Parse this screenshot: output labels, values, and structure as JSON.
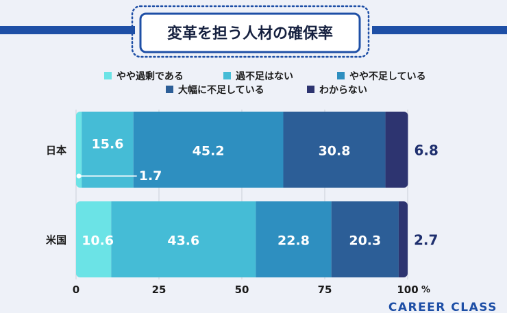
{
  "chart_data": {
    "type": "bar",
    "orientation": "horizontal",
    "stacked": true,
    "title": "変革を担う人材の確保率",
    "categories": [
      "日本",
      "米国"
    ],
    "series": [
      {
        "name": "やや過剰である",
        "color": "#6be3e6",
        "values": [
          1.7,
          10.6
        ]
      },
      {
        "name": "過不足はない",
        "color": "#45bcd6",
        "values": [
          15.6,
          43.6
        ]
      },
      {
        "name": "やや不足している",
        "color": "#2e8fc0",
        "values": [
          45.2,
          22.8
        ]
      },
      {
        "name": "大幅に不足している",
        "color": "#2c5e97",
        "values": [
          30.8,
          20.3
        ]
      },
      {
        "name": "わからない",
        "color": "#2d3470",
        "values": [
          6.8,
          2.7
        ]
      }
    ],
    "xlim": [
      0,
      100
    ],
    "xticks": [
      "0",
      "25",
      "50",
      "75",
      "100"
    ],
    "unit": "%",
    "grid": true,
    "legend": "top-center"
  },
  "brand": "CAREER CLASS",
  "colors": {
    "background": "#eef1f8",
    "accent": "#1e4fa6",
    "label_dark": "#1e2f6e"
  }
}
